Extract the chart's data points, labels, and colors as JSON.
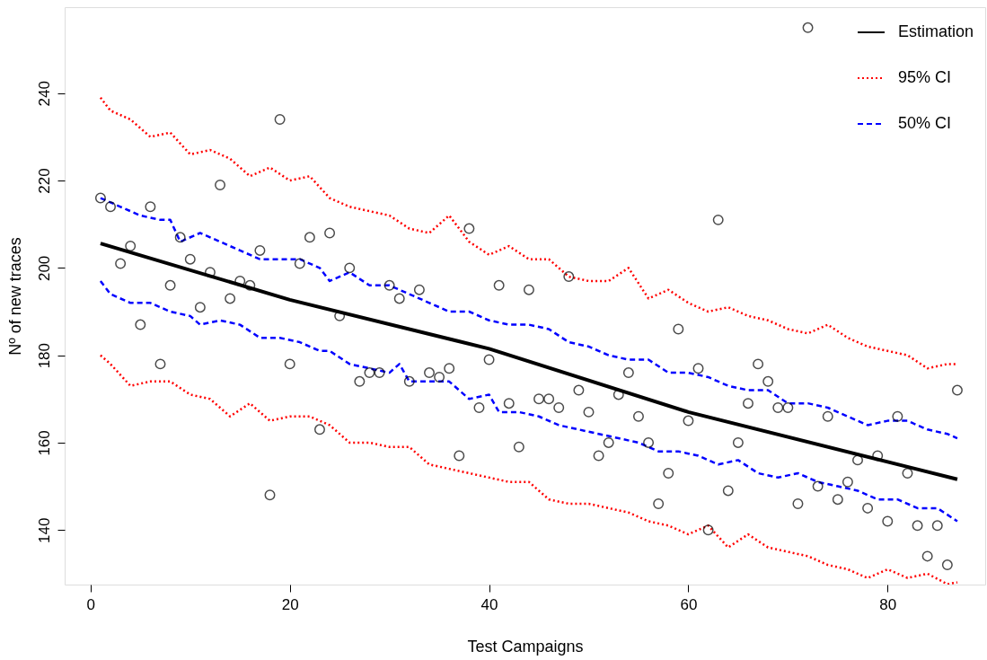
{
  "chart_data": {
    "type": "scatter",
    "xlabel": "Test Campaigns",
    "ylabel": "Nº of new traces",
    "xlim": [
      -2.6,
      89.8
    ],
    "ylim": [
      127.5,
      259.7
    ],
    "xticks": [
      0,
      20,
      40,
      60,
      80
    ],
    "yticks": [
      140,
      160,
      180,
      200,
      220,
      240
    ],
    "grid": false,
    "legend": "top right",
    "series": [
      {
        "color": "#000000",
        "marker": "circle",
        "x": [
          1,
          2,
          3,
          4,
          5,
          6,
          7,
          8,
          9,
          10,
          11,
          12,
          13,
          14,
          15,
          16,
          17,
          18,
          19,
          20,
          21,
          22,
          23,
          24,
          25,
          26,
          27,
          28,
          29,
          30,
          31,
          32,
          33,
          34,
          35,
          36,
          37,
          38,
          39,
          40,
          41,
          42,
          43,
          44,
          45,
          46,
          47,
          48,
          49,
          50,
          51,
          52,
          53,
          54,
          55,
          56,
          57,
          58,
          59,
          60,
          61,
          62,
          63,
          64,
          65,
          66,
          67,
          68,
          69,
          70,
          71,
          72,
          73,
          74,
          75,
          76,
          77,
          78,
          79,
          80,
          81,
          82,
          83,
          84,
          85,
          86,
          87
        ],
        "values": [
          216,
          214,
          201,
          205,
          187,
          214,
          178,
          196,
          207,
          202,
          191,
          199,
          219,
          193,
          197,
          196,
          204,
          148,
          234,
          178,
          201,
          207,
          163,
          208,
          189,
          200,
          174,
          176,
          176,
          196,
          193,
          174,
          195,
          176,
          175,
          177,
          157,
          209,
          168,
          179,
          196,
          169,
          159,
          195,
          170,
          170,
          168,
          198,
          172,
          167,
          157,
          160,
          171,
          176,
          166,
          160,
          146,
          153,
          186,
          165,
          177,
          140,
          211,
          149,
          160,
          169,
          178,
          174,
          168,
          168,
          146,
          255,
          150,
          166,
          147,
          151,
          156,
          145,
          157,
          142,
          166,
          153,
          141,
          134,
          141,
          132,
          172
        ]
      },
      {
        "type": "line",
        "name": "Estimation",
        "color": "#000000",
        "line_style": "solid",
        "x": [
          1,
          20,
          40,
          60,
          87
        ],
        "values": [
          205.6,
          192.7,
          181.5,
          167,
          151.6
        ]
      },
      {
        "type": "line",
        "name": "95% CI",
        "color": "#ff0000",
        "line_style": "dotted",
        "x": [
          1,
          2,
          4,
          6,
          8,
          10,
          12,
          14,
          16,
          18,
          20,
          22,
          24,
          26,
          28,
          30,
          32,
          34,
          36,
          38,
          40,
          42,
          44,
          46,
          48,
          50,
          52,
          54,
          56,
          58,
          60,
          62,
          64,
          66,
          68,
          70,
          72,
          74,
          76,
          78,
          80,
          82,
          84,
          86,
          87
        ],
        "values": [
          239,
          236,
          234,
          230,
          231,
          226,
          227,
          225,
          221,
          223,
          220,
          221,
          216,
          214,
          213,
          212,
          209,
          208,
          212,
          206,
          203,
          205,
          202,
          202,
          198,
          197,
          197,
          200,
          193,
          195,
          192,
          190,
          191,
          189,
          188,
          186,
          185,
          187,
          184,
          182,
          181,
          180,
          177,
          178,
          178
        ]
      },
      {
        "type": "line",
        "color": "#ff0000",
        "line_style": "dotted",
        "x": [
          1,
          2,
          4,
          6,
          8,
          10,
          12,
          14,
          16,
          18,
          20,
          22,
          24,
          26,
          28,
          30,
          32,
          34,
          36,
          38,
          40,
          42,
          44,
          46,
          48,
          50,
          52,
          54,
          56,
          58,
          60,
          62,
          64,
          66,
          68,
          70,
          72,
          74,
          76,
          78,
          80,
          82,
          84,
          86,
          87
        ],
        "values": [
          180,
          178,
          173,
          174,
          174,
          171,
          170,
          166,
          169,
          165,
          166,
          166,
          164,
          160,
          160,
          159,
          159,
          155,
          154,
          153,
          152,
          151,
          151,
          147,
          146,
          146,
          145,
          144,
          142,
          141,
          139,
          141,
          136,
          139,
          136,
          135,
          134,
          132,
          131,
          129,
          131,
          129,
          130,
          127.6,
          128
        ]
      },
      {
        "type": "line",
        "name": "50% CI",
        "color": "#0000ff",
        "line_style": "dashed",
        "x": [
          1,
          3,
          5,
          7,
          8,
          9,
          11,
          13,
          15,
          17,
          19,
          21,
          23,
          24,
          26,
          28,
          30,
          32,
          34,
          36,
          38,
          40,
          42,
          44,
          46,
          48,
          50,
          52,
          54,
          56,
          58,
          60,
          62,
          64,
          66,
          68,
          70,
          72,
          74,
          76,
          78,
          80,
          82,
          84,
          86,
          87
        ],
        "values": [
          216,
          214,
          212,
          211,
          211,
          206,
          208,
          206,
          204,
          202,
          202,
          202,
          200,
          197,
          199,
          196,
          196,
          194,
          192,
          190,
          190,
          188,
          187,
          187,
          186,
          183,
          182,
          180,
          179,
          179,
          176,
          176,
          175,
          173,
          172,
          172,
          169,
          169,
          168,
          166,
          164,
          165,
          165,
          163,
          162,
          161
        ]
      },
      {
        "type": "line",
        "color": "#0000ff",
        "line_style": "dashed",
        "x": [
          1,
          2,
          4,
          6,
          8,
          10,
          11,
          13,
          15,
          17,
          19,
          21,
          23,
          24,
          26,
          28,
          30,
          31,
          32,
          34,
          36,
          38,
          40,
          41,
          43,
          45,
          47,
          49,
          51,
          53,
          55,
          57,
          59,
          61,
          63,
          65,
          67,
          69,
          71,
          73,
          75,
          77,
          79,
          81,
          83,
          85,
          87
        ],
        "values": [
          197,
          194,
          192,
          192,
          190,
          189,
          187,
          188,
          187,
          184,
          184,
          183,
          181,
          181,
          178,
          177,
          176,
          178,
          174,
          174,
          174,
          170,
          171,
          167,
          167,
          166,
          164,
          163,
          162,
          161,
          160,
          158,
          158,
          157,
          155,
          156,
          153,
          152,
          153,
          151,
          150,
          149,
          147,
          147,
          145,
          145,
          142
        ]
      }
    ]
  }
}
